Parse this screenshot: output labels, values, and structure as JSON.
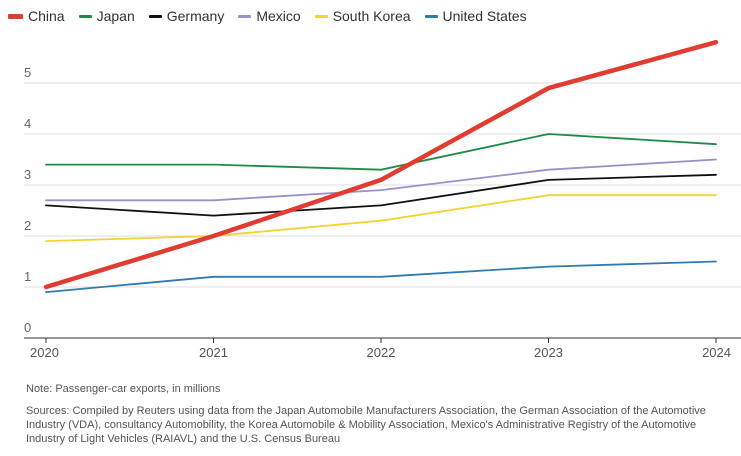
{
  "chart_data": {
    "type": "line",
    "title": "",
    "xlabel": "",
    "ylabel": "",
    "x": [
      "2020",
      "2021",
      "2022",
      "2023",
      "2024"
    ],
    "y_ticks": [
      "0",
      "1",
      "2",
      "3",
      "4",
      "5"
    ],
    "ylim": [
      0,
      6
    ],
    "grid": true,
    "legend_position": "top-left",
    "series": [
      {
        "name": "China",
        "color": "#e03c31",
        "values": [
          1.0,
          2.0,
          3.1,
          4.9,
          5.8
        ]
      },
      {
        "name": "Japan",
        "color": "#1e8c45",
        "values": [
          3.4,
          3.4,
          3.3,
          4.0,
          3.8
        ]
      },
      {
        "name": "Germany",
        "color": "#111111",
        "values": [
          2.6,
          2.4,
          2.6,
          3.1,
          3.2
        ]
      },
      {
        "name": "Mexico",
        "color": "#9d8fcc",
        "values": [
          2.7,
          2.7,
          2.9,
          3.3,
          3.5
        ]
      },
      {
        "name": "South Korea",
        "color": "#f5d233",
        "values": [
          1.9,
          2.0,
          2.3,
          2.8,
          2.8
        ]
      },
      {
        "name": "United States",
        "color": "#2f7bb0",
        "values": [
          0.9,
          1.2,
          1.2,
          1.4,
          1.5
        ]
      }
    ]
  },
  "footer": {
    "note": "Note: Passenger-car exports, in millions",
    "sources": "Sources: Compiled by Reuters using data from the Japan Automobile Manufacturers Association, the German Association of the Automotive Industry (VDA), consultancy Automobility, the Korea Automobile & Mobility Association, Mexico's Administrative Registry of the Automotive Industry of Light Vehicles (RAIAVL) and the U.S. Census Bureau"
  }
}
